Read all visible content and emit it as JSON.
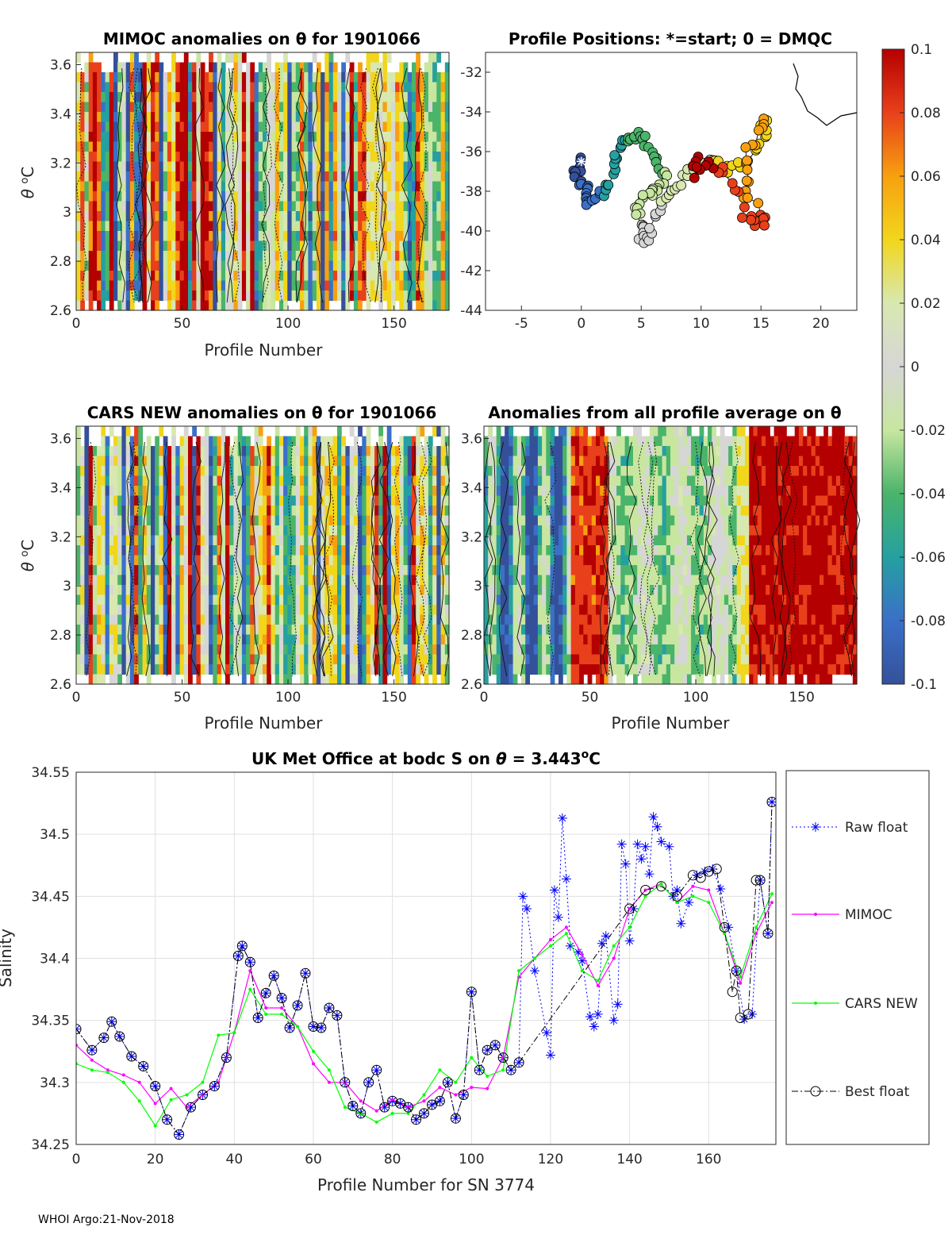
{
  "footer": "WHOI Argo:21-Nov-2018",
  "colorbar": {
    "ticks": [
      "0.1",
      "0.08",
      "0.06",
      "0.04",
      "0.02",
      "0",
      "-0.02",
      "-0.04",
      "-0.06",
      "-0.08",
      "-0.1"
    ],
    "stops": [
      "#b40000",
      "#e8401a",
      "#f8a010",
      "#f2d61c",
      "#d8e8b0",
      "#d6d6d6",
      "#c8e6a0",
      "#4ab46a",
      "#25a0a0",
      "#3a70c8",
      "#35509a"
    ]
  },
  "chart_data": [
    {
      "type": "heatmap",
      "title": "MIMOC anomalies on θ  for 1901066",
      "xlabel": "Profile Number",
      "ylabel": "θ °C",
      "xlim": [
        0,
        176
      ],
      "ylim": [
        2.6,
        3.65
      ],
      "xticks": [
        "0",
        "50",
        "100",
        "150"
      ],
      "yticks": [
        "2.6",
        "2.8",
        "3",
        "3.2",
        "3.4",
        "3.6"
      ]
    },
    {
      "type": "scatter",
      "title": "Profile Positions: *=start; 0 = DMQC",
      "xlim": [
        -8,
        23
      ],
      "ylim": [
        -44,
        -31
      ],
      "xticks": [
        "-5",
        "0",
        "5",
        "10",
        "15",
        "20"
      ],
      "yticks": [
        "-32",
        "-34",
        "-36",
        "-38",
        "-40",
        "-42",
        "-44"
      ],
      "start_point": [
        0,
        -36.5
      ]
    },
    {
      "type": "heatmap",
      "title": "CARS NEW anomalies on θ for 1901066",
      "xlabel": "Profile Number",
      "ylabel": "θ °C",
      "xlim": [
        0,
        176
      ],
      "ylim": [
        2.6,
        3.65
      ],
      "xticks": [
        "0",
        "50",
        "100",
        "150"
      ],
      "yticks": [
        "2.6",
        "2.8",
        "3",
        "3.2",
        "3.4",
        "3.6"
      ]
    },
    {
      "type": "heatmap",
      "title": "Anomalies from all profile average on θ",
      "xlabel": "Profile Number",
      "xlim": [
        0,
        176
      ],
      "ylim": [
        2.6,
        3.65
      ],
      "xticks": [
        "0",
        "50",
        "100",
        "150"
      ],
      "yticks": [
        "2.6",
        "2.8",
        "3",
        "3.2",
        "3.4",
        "3.6"
      ]
    },
    {
      "type": "line",
      "title": "UK Met Office at bodc S on θ = 3.443°C",
      "title_parts": [
        "UK Met Office at bodc S on ",
        "θ",
        " = 3.443",
        "o",
        "C"
      ],
      "xlabel": "Profile Number for SN 3774",
      "ylabel": "Salinity",
      "xlim": [
        0,
        177
      ],
      "ylim": [
        34.25,
        34.55
      ],
      "xticks": [
        "0",
        "20",
        "40",
        "60",
        "80",
        "100",
        "120",
        "140",
        "160"
      ],
      "yticks": [
        "34.25",
        "34.3",
        "34.35",
        "34.4",
        "34.45",
        "34.5",
        "34.55"
      ],
      "legend": [
        "Raw float",
        "MIMOC",
        "CARS NEW",
        "Best float"
      ],
      "series": [
        {
          "name": "Raw float",
          "color": "#0000ff",
          "x": [
            0,
            4,
            7,
            9,
            11,
            14,
            17,
            20,
            23,
            26,
            29,
            32,
            35,
            38,
            41,
            42,
            44,
            46,
            48,
            50,
            52,
            54,
            56,
            58,
            60,
            62,
            64,
            66,
            68,
            70,
            72,
            74,
            76,
            78,
            80,
            82,
            84,
            86,
            88,
            90,
            92,
            94,
            96,
            98,
            100,
            102,
            104,
            106,
            108,
            110,
            112,
            113,
            114,
            116,
            119,
            120,
            121,
            122,
            123,
            124,
            125,
            127,
            128,
            130,
            131,
            132,
            133,
            134,
            136,
            137,
            138,
            139,
            140,
            141,
            142,
            143,
            144,
            145,
            146,
            147,
            148,
            150,
            151,
            152,
            153,
            155,
            157,
            159,
            161,
            163,
            165,
            167,
            169,
            171,
            173,
            175,
            176
          ],
          "y": [
            34.343,
            34.326,
            34.336,
            34.349,
            34.337,
            34.321,
            34.313,
            34.297,
            34.27,
            34.258,
            34.28,
            34.29,
            34.297,
            34.32,
            34.402,
            34.41,
            34.397,
            34.352,
            34.372,
            34.386,
            34.368,
            34.344,
            34.362,
            34.388,
            34.345,
            34.344,
            34.36,
            34.354,
            34.3,
            34.281,
            34.275,
            34.3,
            34.31,
            34.28,
            34.285,
            34.283,
            34.28,
            34.27,
            34.275,
            34.282,
            34.285,
            34.3,
            34.271,
            34.29,
            34.373,
            34.31,
            34.326,
            34.33,
            34.32,
            34.31,
            34.316,
            34.45,
            34.44,
            34.39,
            34.34,
            34.322,
            34.455,
            34.433,
            34.513,
            34.464,
            34.41,
            34.405,
            34.398,
            34.353,
            34.345,
            34.355,
            34.412,
            34.418,
            34.35,
            34.363,
            34.492,
            34.476,
            34.414,
            34.44,
            34.492,
            34.48,
            34.49,
            34.468,
            34.514,
            34.506,
            34.494,
            34.49,
            34.45,
            34.455,
            34.428,
            34.445,
            34.467,
            34.47,
            34.472,
            34.456,
            34.425,
            34.39,
            34.351,
            34.355,
            34.463,
            34.42,
            34.526
          ]
        },
        {
          "name": "MIMOC",
          "color": "#ff00ff",
          "x": [
            0,
            4,
            8,
            12,
            16,
            20,
            24,
            28,
            32,
            36,
            40,
            44,
            48,
            52,
            56,
            60,
            64,
            68,
            72,
            76,
            80,
            84,
            88,
            92,
            96,
            100,
            104,
            108,
            112,
            116,
            120,
            124,
            128,
            132,
            136,
            140,
            144,
            148,
            152,
            156,
            160,
            164,
            168,
            172,
            176
          ],
          "y": [
            34.33,
            34.318,
            34.31,
            34.306,
            34.3,
            34.283,
            34.295,
            34.28,
            34.29,
            34.3,
            34.34,
            34.39,
            34.36,
            34.36,
            34.345,
            34.315,
            34.3,
            34.3,
            34.285,
            34.277,
            34.286,
            34.28,
            34.285,
            34.296,
            34.29,
            34.296,
            34.295,
            34.32,
            34.385,
            34.4,
            34.415,
            34.425,
            34.403,
            34.378,
            34.4,
            34.44,
            34.455,
            34.46,
            34.445,
            34.458,
            34.455,
            34.42,
            34.38,
            34.42,
            34.445
          ]
        },
        {
          "name": "CARS NEW",
          "color": "#00ff00",
          "x": [
            0,
            4,
            8,
            12,
            16,
            20,
            24,
            28,
            32,
            36,
            40,
            44,
            48,
            52,
            56,
            60,
            64,
            68,
            72,
            76,
            80,
            84,
            88,
            92,
            96,
            100,
            104,
            108,
            112,
            116,
            120,
            124,
            128,
            132,
            136,
            140,
            144,
            148,
            152,
            156,
            160,
            164,
            168,
            172,
            176
          ],
          "y": [
            34.315,
            34.31,
            34.308,
            34.3,
            34.285,
            34.265,
            34.286,
            34.29,
            34.3,
            34.338,
            34.34,
            34.375,
            34.355,
            34.355,
            34.345,
            34.325,
            34.31,
            34.28,
            34.275,
            34.268,
            34.275,
            34.275,
            34.29,
            34.31,
            34.3,
            34.32,
            34.305,
            34.31,
            34.39,
            34.4,
            34.41,
            34.42,
            34.39,
            34.382,
            34.41,
            34.425,
            34.45,
            34.46,
            34.445,
            34.45,
            34.445,
            34.42,
            34.385,
            34.425,
            34.452
          ]
        },
        {
          "name": "Best float",
          "color": "#000000",
          "x": [
            0,
            4,
            7,
            9,
            11,
            14,
            17,
            20,
            23,
            26,
            29,
            32,
            35,
            38,
            41,
            42,
            44,
            46,
            48,
            50,
            52,
            54,
            56,
            58,
            60,
            62,
            64,
            66,
            68,
            70,
            72,
            74,
            76,
            78,
            80,
            82,
            84,
            86,
            88,
            90,
            92,
            94,
            96,
            98,
            100,
            102,
            104,
            106,
            108,
            110,
            112,
            140,
            144,
            148,
            152,
            156,
            158,
            160,
            162,
            164,
            166,
            167,
            168,
            170,
            172,
            173,
            175,
            176
          ],
          "y": [
            34.343,
            34.326,
            34.336,
            34.349,
            34.337,
            34.321,
            34.313,
            34.297,
            34.27,
            34.258,
            34.28,
            34.29,
            34.297,
            34.32,
            34.402,
            34.41,
            34.397,
            34.352,
            34.372,
            34.386,
            34.368,
            34.344,
            34.362,
            34.388,
            34.345,
            34.344,
            34.36,
            34.354,
            34.3,
            34.281,
            34.275,
            34.3,
            34.31,
            34.28,
            34.285,
            34.283,
            34.28,
            34.27,
            34.275,
            34.282,
            34.285,
            34.3,
            34.271,
            34.29,
            34.373,
            34.31,
            34.326,
            34.33,
            34.32,
            34.31,
            34.316,
            34.44,
            34.455,
            34.458,
            34.45,
            34.467,
            34.465,
            34.47,
            34.472,
            34.425,
            34.373,
            34.39,
            34.352,
            34.355,
            34.463,
            34.463,
            34.42,
            34.526
          ]
        }
      ]
    }
  ]
}
